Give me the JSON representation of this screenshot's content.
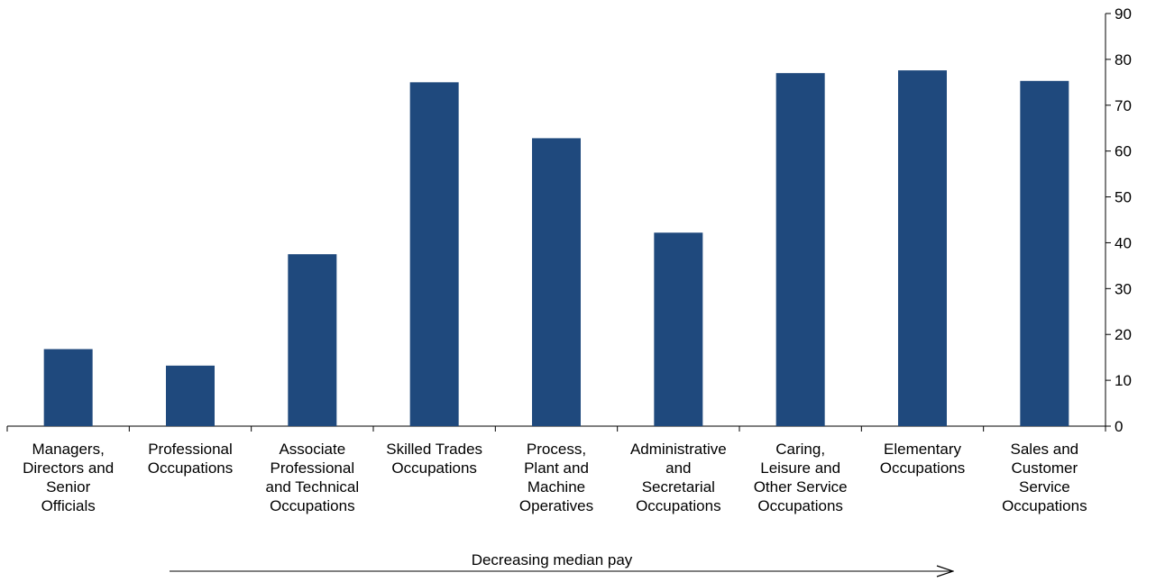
{
  "chart_data": {
    "type": "bar",
    "categories": [
      "Managers,\nDirectors and\nSenior\nOfficials",
      "Professional\nOccupations",
      "Associate\nProfessional\nand Technical\nOccupations",
      "Skilled Trades\nOccupations",
      "Process,\nPlant and\nMachine\nOperatives",
      "Administrative\nand\nSecretarial\nOccupations",
      "Caring,\nLeisure and\nOther Service\nOccupations",
      "Elementary\nOccupations",
      "Sales and\nCustomer\nService\nOccupations"
    ],
    "values": [
      16.8,
      13.2,
      37.5,
      75,
      62.8,
      42.2,
      77,
      77.6,
      75.3
    ],
    "color": "#1f497d",
    "ylim": [
      0,
      90
    ],
    "yticks": [
      0,
      10,
      20,
      30,
      40,
      50,
      60,
      70,
      80,
      90
    ],
    "y_axis_side": "right",
    "grid": false,
    "annotation": "Decreasing median pay"
  }
}
